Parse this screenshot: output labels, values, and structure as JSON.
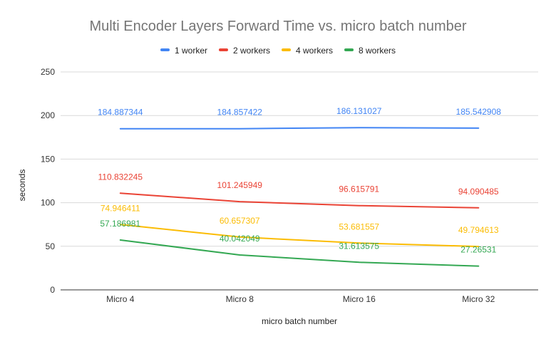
{
  "chart_data": {
    "type": "line",
    "title": "Multi Encoder Layers Forward Time vs. micro batch number",
    "xlabel": "micro batch number",
    "ylabel": "seconds",
    "categories": [
      "Micro 4",
      "Micro 8",
      "Micro 16",
      "Micro 32"
    ],
    "ylim": [
      0,
      250
    ],
    "yticks": [
      0,
      50,
      100,
      150,
      200,
      250
    ],
    "grid": true,
    "legend_position": "top",
    "series": [
      {
        "name": "1 worker",
        "color": "#4285f4",
        "values": [
          184.887344,
          184.857422,
          186.131027,
          185.542908
        ],
        "labels": [
          "184.887344",
          "184.857422",
          "186.131027",
          "185.542908"
        ]
      },
      {
        "name": "2 workers",
        "color": "#ea4335",
        "values": [
          110.832245,
          101.245949,
          96.615791,
          94.090485
        ],
        "labels": [
          "110.832245",
          "101.245949",
          "96.615791",
          "94.090485"
        ]
      },
      {
        "name": "4 workers",
        "color": "#fbbc04",
        "values": [
          74.946411,
          60.657307,
          53.681557,
          49.794613
        ],
        "labels": [
          "74.946411",
          "60.657307",
          "53.681557",
          "49.794613"
        ]
      },
      {
        "name": "8 workers",
        "color": "#34a853",
        "values": [
          57.186981,
          40.042049,
          31.613575,
          27.26531
        ],
        "labels": [
          "57.186981",
          "40.042049",
          "31.613575",
          "27.26531"
        ]
      }
    ]
  }
}
